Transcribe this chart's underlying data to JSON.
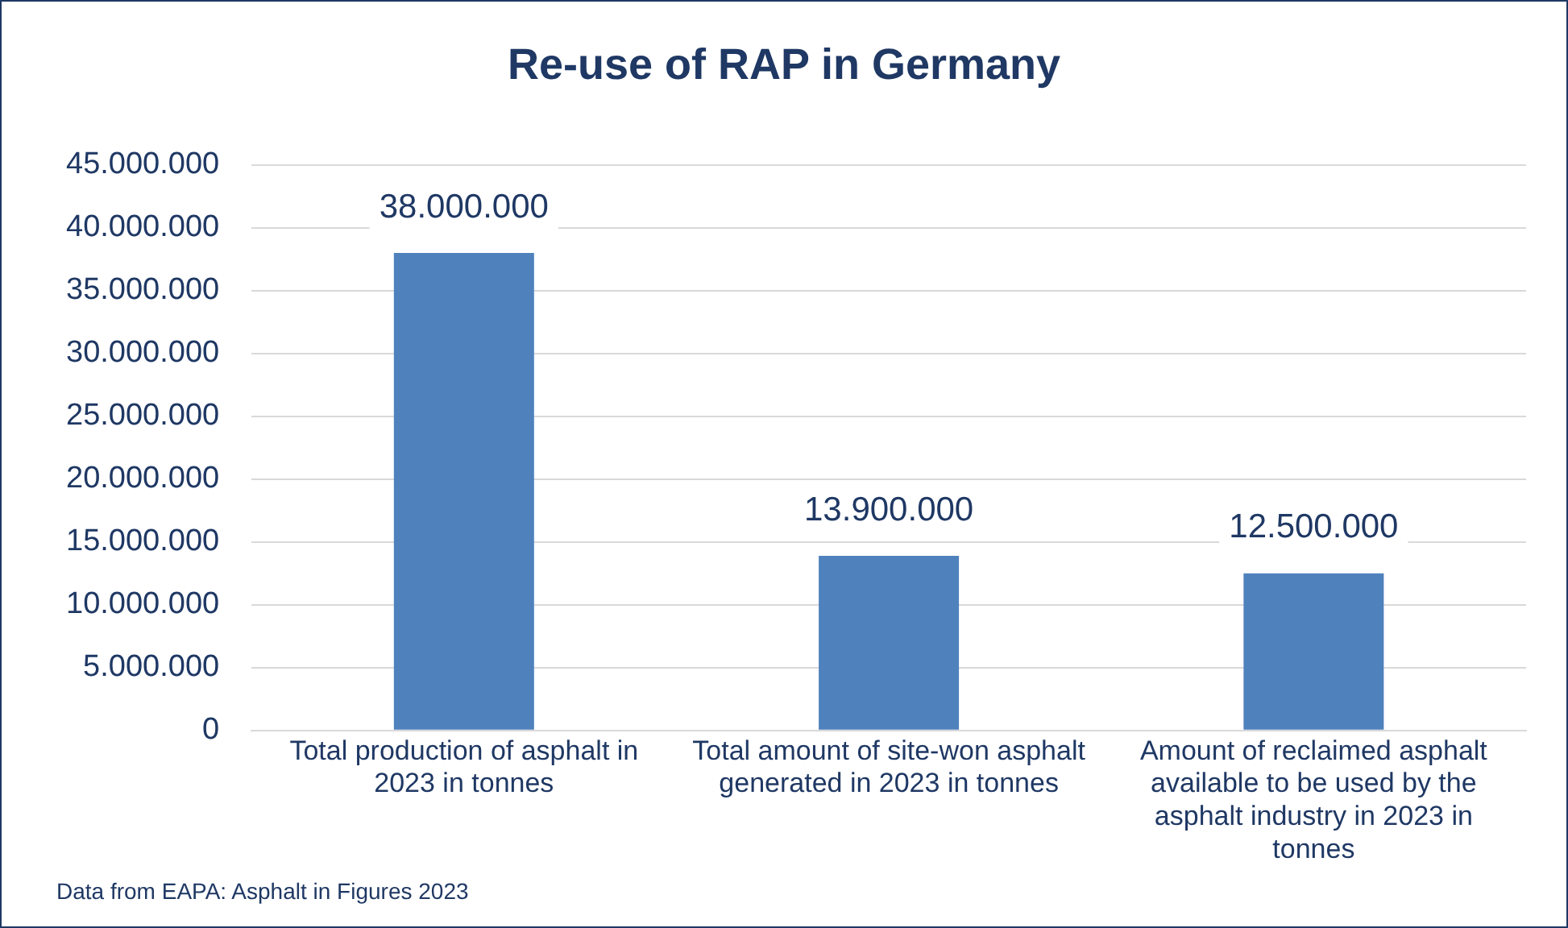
{
  "chart_data": {
    "type": "bar",
    "title": "Re-use of RAP in Germany",
    "categories": [
      "Total production of asphalt in 2023 in tonnes",
      "Total amount of site-won asphalt generated in 2023 in tonnes",
      "Amount of reclaimed asphalt available to be used by the asphalt industry in 2023 in tonnes"
    ],
    "values": [
      38000000,
      13900000,
      12500000
    ],
    "value_labels": [
      "38.000.000",
      "13.900.000",
      "12.500.000"
    ],
    "color": "#4f81bd",
    "ylim": [
      0,
      45000000
    ],
    "yticks": [
      {
        "value": 0,
        "label": "0"
      },
      {
        "value": 5000000,
        "label": "5.000.000"
      },
      {
        "value": 10000000,
        "label": "10.000.000"
      },
      {
        "value": 15000000,
        "label": "15.000.000"
      },
      {
        "value": 20000000,
        "label": "20.000.000"
      },
      {
        "value": 25000000,
        "label": "25.000.000"
      },
      {
        "value": 30000000,
        "label": "30.000.000"
      },
      {
        "value": 35000000,
        "label": "35.000.000"
      },
      {
        "value": 40000000,
        "label": "40.000.000"
      },
      {
        "value": 45000000,
        "label": "45.000.000"
      }
    ],
    "grid": "y",
    "annotations": [
      "Data from EAPA: Asphalt in Figures 2023"
    ]
  }
}
